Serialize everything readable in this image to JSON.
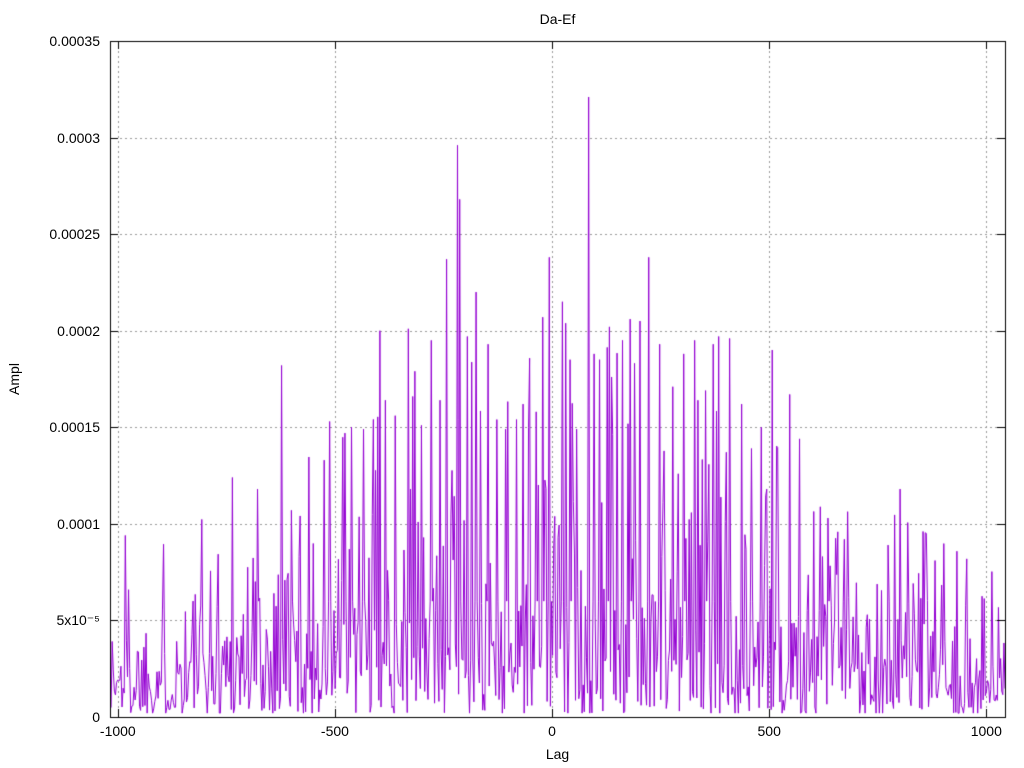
{
  "figure": {
    "background": "#ffffff",
    "text_color": "#000000"
  },
  "chart_data": {
    "type": "line",
    "title": "Da-Ef",
    "xlabel": "Lag",
    "ylabel": "Ampl",
    "xlim": [
      -1018,
      1043
    ],
    "ylim": [
      0,
      0.00035
    ],
    "xticks": [
      {
        "value": -1000,
        "label": "-1000"
      },
      {
        "value": -500,
        "label": "-500"
      },
      {
        "value": 0,
        "label": "0"
      },
      {
        "value": 500,
        "label": "500"
      },
      {
        "value": 1000,
        "label": "1000"
      }
    ],
    "yticks": [
      {
        "value": 0,
        "label": "0"
      },
      {
        "value": 5e-05,
        "label": "5x10⁻⁵"
      },
      {
        "value": 0.0001,
        "label": "0.0001"
      },
      {
        "value": 0.00015,
        "label": "0.00015"
      },
      {
        "value": 0.0002,
        "label": "0.0002"
      },
      {
        "value": 0.00025,
        "label": "0.00025"
      },
      {
        "value": 0.0003,
        "label": "0.0003"
      },
      {
        "value": 0.00035,
        "label": "0.00035"
      }
    ],
    "grid": {
      "visible": true,
      "dash": [
        2,
        3
      ],
      "color": "#9a9a9a"
    },
    "line_color": "#9400D3",
    "border_color": "#000000",
    "tick_length": 8,
    "noise": {
      "description": "dense noisy correlation trace with triangular envelope peaking at lag 0",
      "seed": 1337,
      "n_points": 820,
      "mean_center": 6.5e-05,
      "mean_edge": 2.2e-05,
      "envelope_halfwidth": 1050,
      "min_value": 2e-06,
      "max_factor": 3.2
    },
    "peaks": [
      [
        -983,
        9.4e-05
      ],
      [
        -735,
        0.000124
      ],
      [
        -678,
        0.000118
      ],
      [
        -622,
        0.000182
      ],
      [
        -600,
        0.000107
      ],
      [
        -512,
        0.000153
      ],
      [
        -477,
        0.000147
      ],
      [
        -461,
        0.00015
      ],
      [
        -434,
        0.000149
      ],
      [
        -396,
        0.0002
      ],
      [
        -385,
        0.000164
      ],
      [
        -362,
        0.000156
      ],
      [
        -332,
        0.000201
      ],
      [
        -316,
        0.000179
      ],
      [
        -300,
        0.000151
      ],
      [
        -277,
        0.000195
      ],
      [
        -258,
        0.000164
      ],
      [
        -242,
        0.000237
      ],
      [
        -217,
        0.000296
      ],
      [
        -212,
        0.000268
      ],
      [
        -194,
        0.000197
      ],
      [
        -175,
        0.00022
      ],
      [
        -148,
        0.000193
      ],
      [
        -127,
        0.000154
      ],
      [
        -108,
        0.000149
      ],
      [
        -83,
        0.000154
      ],
      [
        -67,
        0.000162
      ],
      [
        -37,
        0.000158
      ],
      [
        -21,
        0.000207
      ],
      [
        -7,
        0.000238
      ],
      [
        23,
        0.000215
      ],
      [
        41,
        0.000185
      ],
      [
        85,
        0.000321
      ],
      [
        96,
        0.000188
      ],
      [
        110,
        0.000185
      ],
      [
        133,
        0.000202
      ],
      [
        161,
        0.000195
      ],
      [
        179,
        0.000206
      ],
      [
        202,
        0.000205
      ],
      [
        223,
        0.000238
      ],
      [
        248,
        0.000193
      ],
      [
        278,
        0.000171
      ],
      [
        303,
        0.000188
      ],
      [
        329,
        0.000195
      ],
      [
        354,
        0.000169
      ],
      [
        370,
        0.000193
      ],
      [
        384,
        0.000197
      ],
      [
        409,
        0.000196
      ],
      [
        437,
        0.000162
      ],
      [
        460,
        0.000139
      ],
      [
        483,
        0.00015
      ],
      [
        508,
        0.00019
      ],
      [
        547,
        0.000167
      ],
      [
        570,
        0.000144
      ],
      [
        635,
        0.000103
      ],
      [
        674,
        9.2e-05
      ],
      [
        773,
        8.9e-05
      ],
      [
        801,
        0.000118
      ],
      [
        881,
        8.1e-05
      ]
    ]
  }
}
